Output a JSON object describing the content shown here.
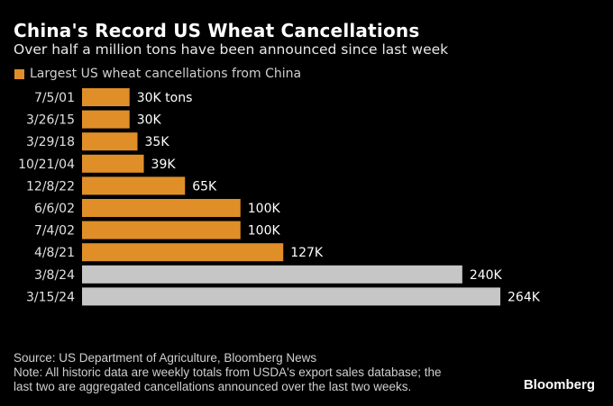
{
  "header": {
    "title": "China's Record US Wheat Cancellations",
    "subtitle": "Over half a million tons have been announced since last week"
  },
  "chart_data": {
    "type": "bar",
    "orientation": "horizontal",
    "title": "China's Record US Wheat Cancellations",
    "subtitle": "Over half a million tons have been announced since last week",
    "legend": [
      {
        "label": "Largest US wheat cancellations from China",
        "color": "#e08f28"
      }
    ],
    "legend_position": "top-left",
    "xlabel": "",
    "ylabel": "",
    "unit": "thousand tons",
    "grid": false,
    "xlim": [
      0,
      264
    ],
    "categories": [
      "7/5/01",
      "3/26/15",
      "3/29/18",
      "10/21/04",
      "12/8/22",
      "6/6/02",
      "7/4/02",
      "4/8/21",
      "3/8/24",
      "3/15/24"
    ],
    "values": [
      30,
      30,
      35,
      39,
      65,
      100,
      100,
      127,
      240,
      264
    ],
    "labels": [
      "30K tons",
      "30K",
      "35K",
      "39K",
      "65K",
      "100K",
      "100K",
      "127K",
      "240K",
      "264K"
    ],
    "colors": [
      "#e08f28",
      "#e08f28",
      "#e08f28",
      "#e08f28",
      "#e08f28",
      "#e08f28",
      "#e08f28",
      "#e08f28",
      "#c6c6c6",
      "#c6c6c6"
    ]
  },
  "footer": {
    "source": "Source: US Department of Agriculture, Bloomberg News",
    "note_line1": "Note: All historic data are weekly totals from USDA's export sales database; the",
    "note_line2": "last two are aggregated cancellations announced over the last two weeks.",
    "brand": "Bloomberg"
  }
}
